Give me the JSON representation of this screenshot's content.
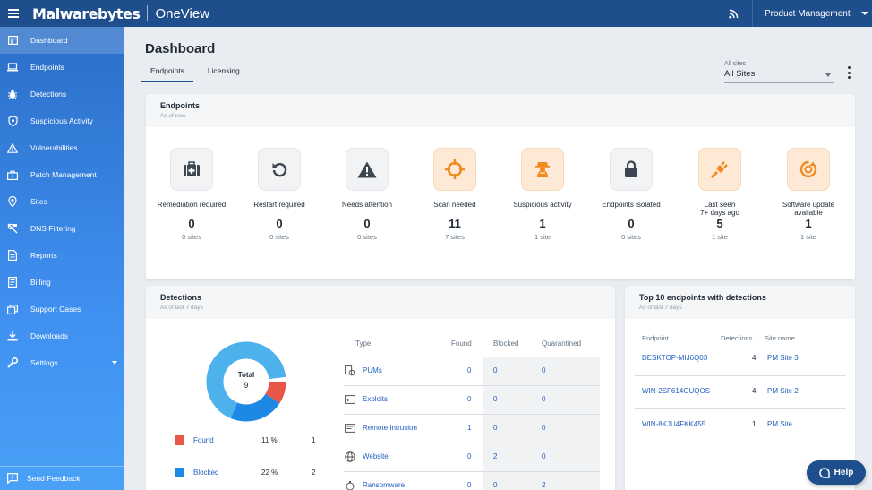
{
  "header": {
    "brand": "Malwarebytes",
    "product": "OneView",
    "org_selector": "Product Management"
  },
  "sidebar": {
    "items": [
      {
        "label": "Dashboard",
        "icon": "dashboard-icon",
        "active": true
      },
      {
        "label": "Endpoints",
        "icon": "laptop-icon"
      },
      {
        "label": "Detections",
        "icon": "bug-icon"
      },
      {
        "label": "Suspicious Activity",
        "icon": "shield-icon"
      },
      {
        "label": "Vulnerabilities",
        "icon": "warning-icon"
      },
      {
        "label": "Patch Management",
        "icon": "briefcase-icon"
      },
      {
        "label": "Sites",
        "icon": "location-pin-icon"
      },
      {
        "label": "DNS Filtering",
        "icon": "dns-filter-icon"
      },
      {
        "label": "Reports",
        "icon": "report-icon"
      },
      {
        "label": "Billing",
        "icon": "billing-icon"
      },
      {
        "label": "Support Cases",
        "icon": "support-cases-icon"
      },
      {
        "label": "Downloads",
        "icon": "download-icon"
      },
      {
        "label": "Settings",
        "icon": "wrench-icon",
        "expandable": true
      }
    ],
    "feedback": "Send Feedback"
  },
  "page": {
    "title": "Dashboard",
    "tabs": [
      {
        "label": "Endpoints",
        "active": true
      },
      {
        "label": "Licensing"
      }
    ],
    "site_filter": {
      "label": "All sites",
      "value": "All Sites"
    }
  },
  "endpoints_card": {
    "title": "Endpoints",
    "subtitle": "As of now",
    "tiles": [
      {
        "label": "Remediation required",
        "value": "0",
        "sites": "0 sites",
        "icon": "medkit-icon",
        "highlight": false
      },
      {
        "label": "Restart required",
        "value": "0",
        "sites": "0 sites",
        "icon": "restart-icon",
        "highlight": false
      },
      {
        "label": "Needs attention",
        "value": "0",
        "sites": "0 sites",
        "icon": "alert-triangle-icon",
        "highlight": false
      },
      {
        "label": "Scan needed",
        "value": "11",
        "sites": "7 sites",
        "icon": "crosshair-icon",
        "highlight": true
      },
      {
        "label": "Suspicious activity",
        "value": "1",
        "sites": "1 site",
        "icon": "suspicious-agent-icon",
        "highlight": true
      },
      {
        "label": "Endpoints isolated",
        "value": "0",
        "sites": "0 sites",
        "icon": "lock-icon",
        "highlight": false
      },
      {
        "label": "Last seen\n7+ days ago",
        "value": "5",
        "sites": "1 site",
        "icon": "unplugged-icon",
        "highlight": true
      },
      {
        "label": "Software update\navailable",
        "value": "1",
        "sites": "1 site",
        "icon": "update-icon",
        "highlight": true
      }
    ]
  },
  "detections_card": {
    "title": "Detections",
    "subtitle": "As of last 7 days",
    "total_label": "Total",
    "total_value": "9",
    "legend": [
      {
        "name": "Found",
        "percent": "11 %",
        "count": "1",
        "color": "#e8564a"
      },
      {
        "name": "Blocked",
        "percent": "22 %",
        "count": "2",
        "color": "#1e88e5"
      }
    ],
    "donut_segments": [
      {
        "name": "Found",
        "fraction": 0.111,
        "color": "#e8564a"
      },
      {
        "name": "Blocked",
        "fraction": 0.222,
        "color": "#1e88e5"
      },
      {
        "name": "Quarantined",
        "fraction": 0.667,
        "color": "#4db1ec"
      }
    ],
    "table": {
      "headers": {
        "type": "Type",
        "found": "Found",
        "blocked": "Blocked",
        "quarantined": "Quarantined"
      },
      "rows": [
        {
          "type": "PUMs",
          "found": "0",
          "blocked": "0",
          "quarantined": "0",
          "icon": "pum-icon"
        },
        {
          "type": "Exploits",
          "found": "0",
          "blocked": "0",
          "quarantined": "0",
          "icon": "exploit-icon"
        },
        {
          "type": "Remote Intrusion",
          "found": "1",
          "blocked": "0",
          "quarantined": "0",
          "icon": "remote-intrusion-icon"
        },
        {
          "type": "Website",
          "found": "0",
          "blocked": "2",
          "quarantined": "0",
          "icon": "globe-icon"
        },
        {
          "type": "Ransomware",
          "found": "0",
          "blocked": "0",
          "quarantined": "2",
          "icon": "ransomware-icon"
        }
      ]
    }
  },
  "top_endpoints_card": {
    "title": "Top 10 endpoints with detections",
    "subtitle": "As of last 7 days",
    "headers": {
      "endpoint": "Endpoint",
      "detections": "Detections",
      "site": "Site name"
    },
    "rows": [
      {
        "endpoint": "DESKTOP-MIJ6Q03",
        "detections": "4",
        "site": "PM Site 3"
      },
      {
        "endpoint": "WIN-2SF614OUQOS",
        "detections": "4",
        "site": "PM Site 2"
      },
      {
        "endpoint": "WIN-8KJU4FKK455",
        "detections": "1",
        "site": "PM Site"
      }
    ]
  },
  "help_button": "Help"
}
